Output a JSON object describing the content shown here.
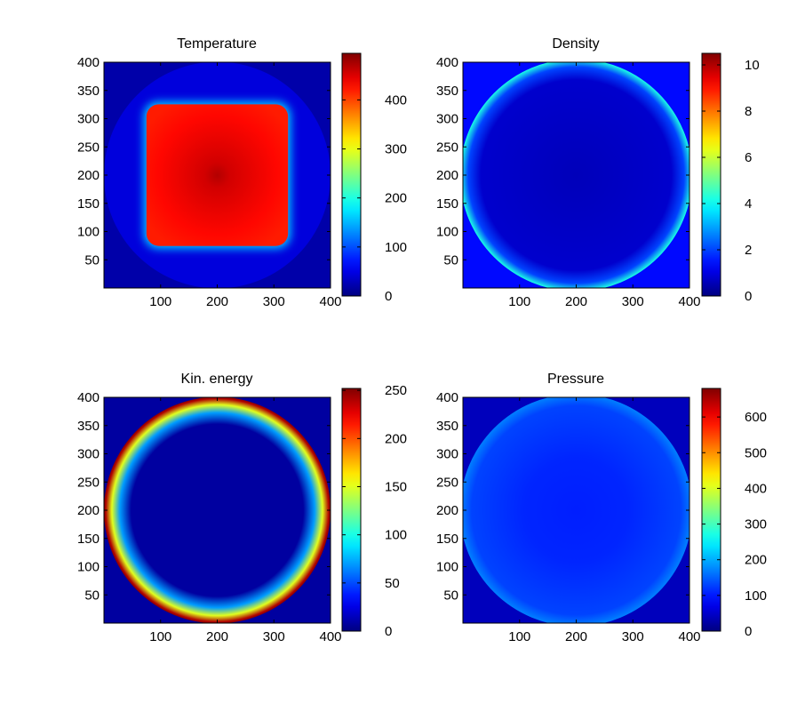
{
  "chart_data": [
    {
      "type": "heatmap",
      "title": "Temperature",
      "xlim": [
        0,
        400
      ],
      "ylim": [
        0,
        400
      ],
      "xticks": [
        100,
        200,
        300,
        400
      ],
      "yticks": [
        50,
        100,
        150,
        200,
        250,
        300,
        350,
        400
      ],
      "colorbar": {
        "min": 0,
        "max": 495,
        "ticks": [
          0,
          100,
          200,
          300,
          400
        ]
      },
      "field": {
        "center": [
          200,
          200
        ],
        "background": 20,
        "disk_radius": 200,
        "disk_value": 45,
        "square_half_width": 125,
        "square_value": 430,
        "peak_value": 470,
        "edge_value": 160
      }
    },
    {
      "type": "heatmap",
      "title": "Density",
      "xlim": [
        0,
        400
      ],
      "ylim": [
        0,
        400
      ],
      "xticks": [
        100,
        200,
        300,
        400
      ],
      "yticks": [
        50,
        100,
        150,
        200,
        250,
        300,
        350,
        400
      ],
      "colorbar": {
        "min": 0,
        "max": 10.5,
        "ticks": [
          0,
          2,
          4,
          6,
          8,
          10
        ]
      },
      "field": {
        "center": [
          200,
          200
        ],
        "background": 1.4,
        "disk_radius": 205,
        "interior_value": 0.6,
        "ring_value": 4.2
      }
    },
    {
      "type": "heatmap",
      "title": "Kin. energy",
      "xlim": [
        0,
        400
      ],
      "ylim": [
        0,
        400
      ],
      "xticks": [
        100,
        200,
        300,
        400
      ],
      "yticks": [
        50,
        100,
        150,
        200,
        250,
        300,
        350,
        400
      ],
      "colorbar": {
        "min": 0,
        "max": 252,
        "ticks": [
          0,
          50,
          100,
          150,
          200,
          250
        ]
      },
      "field": {
        "center": [
          200,
          200
        ],
        "background": 8,
        "disk_radius": 200,
        "interior_value": 8,
        "rim_value": 240
      }
    },
    {
      "type": "heatmap",
      "title": "Pressure",
      "xlim": [
        0,
        400
      ],
      "ylim": [
        0,
        400
      ],
      "xticks": [
        100,
        200,
        300,
        400
      ],
      "yticks": [
        50,
        100,
        150,
        200,
        250,
        300,
        350,
        400
      ],
      "colorbar": {
        "min": 0,
        "max": 680,
        "ticks": [
          0,
          100,
          200,
          300,
          400,
          500,
          600
        ]
      },
      "field": {
        "center": [
          200,
          200
        ],
        "background": 40,
        "disk_radius": 205,
        "interior_value": 110,
        "edge_value": 170
      }
    }
  ]
}
